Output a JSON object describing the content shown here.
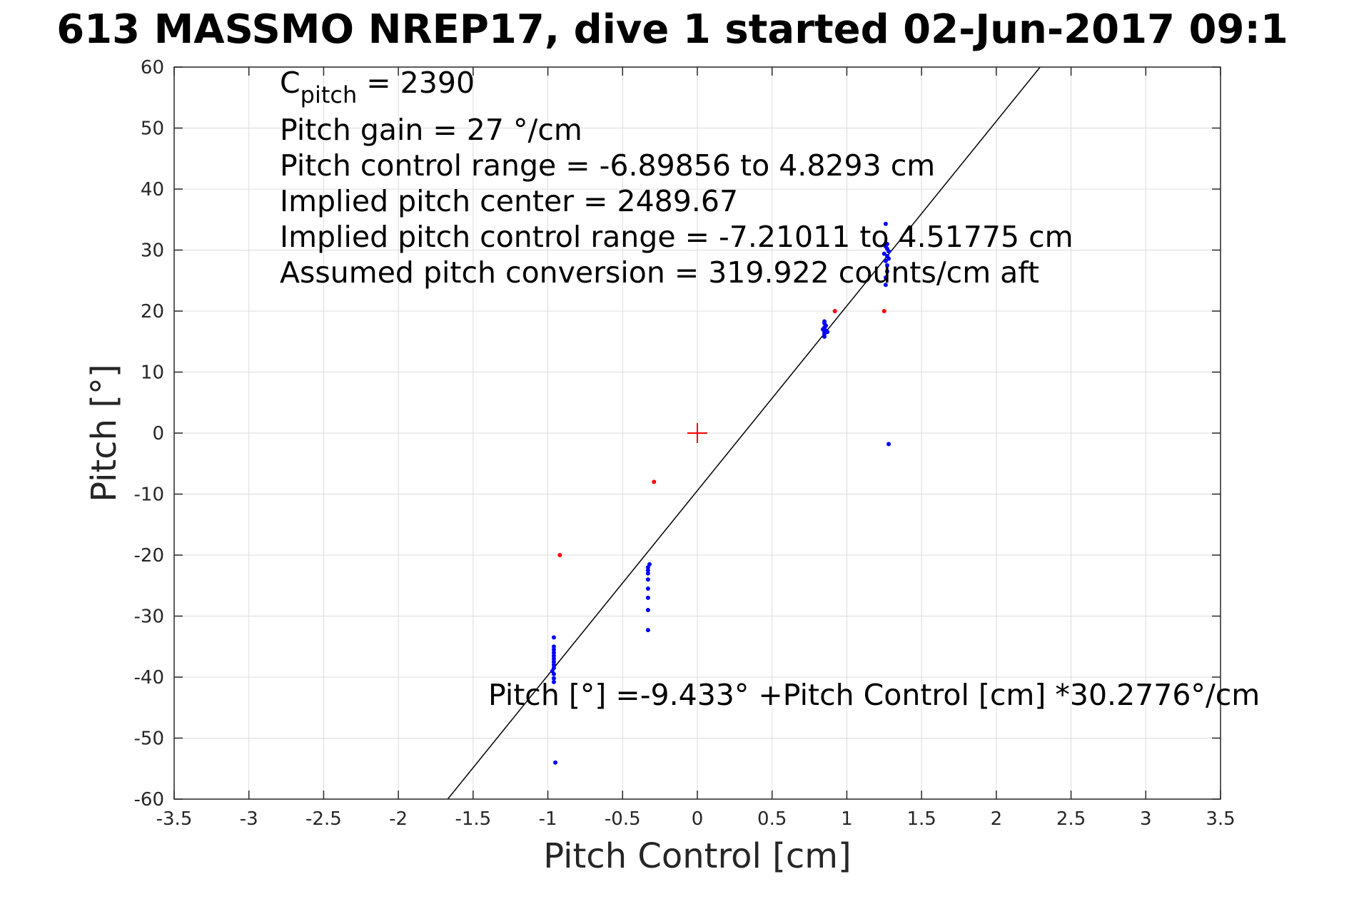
{
  "chart_data": {
    "type": "scatter",
    "title": "613 MASSMO NREP17, dive 1 started 02-Jun-2017 09:1",
    "xlabel": "Pitch Control [cm]",
    "ylabel": "Pitch [°]",
    "xlim": [
      -3.5,
      3.5
    ],
    "ylim": [
      -60,
      60
    ],
    "xticks": [
      -3.5,
      -3,
      -2.5,
      -2,
      -1.5,
      -1,
      -0.5,
      0,
      0.5,
      1,
      1.5,
      2,
      2.5,
      3,
      3.5
    ],
    "xtick_labels": [
      "-3.5",
      "-3",
      "-2.5",
      "-2",
      "-1.5",
      "-1",
      "-0.5",
      "0",
      "0.5",
      "1",
      "1.5",
      "2",
      "2.5",
      "3",
      "3.5"
    ],
    "yticks": [
      -60,
      -50,
      -40,
      -30,
      -20,
      -10,
      0,
      10,
      20,
      30,
      40,
      50,
      60
    ],
    "ytick_labels": [
      "-60",
      "-50",
      "-40",
      "-30",
      "-20",
      "-10",
      "0",
      "10",
      "20",
      "30",
      "40",
      "50",
      "60"
    ],
    "grid": true,
    "annotations": {
      "cpitch_base": "C",
      "cpitch_sub": "pitch",
      "cpitch_rest": " = 2390",
      "lines": [
        "Pitch gain = 27 °/cm",
        "Pitch control range = -6.89856 to 4.8293 cm",
        "Implied pitch center = 2489.67",
        "Implied pitch control range = -7.21011 to 4.51775 cm",
        "Assumed pitch conversion = 319.922 counts/cm aft"
      ],
      "fit_equation": "Pitch [°] =-9.433° +Pitch Control [cm] *30.2776°/cm"
    },
    "fit_line": {
      "intercept": -9.433,
      "slope": 30.2776,
      "color": "#000000"
    },
    "series": [
      {
        "color": "#0000ff",
        "points": [
          [
            -0.96,
            -33.5
          ],
          [
            -0.96,
            -35.0
          ],
          [
            -0.96,
            -35.5
          ],
          [
            -0.96,
            -36.0
          ],
          [
            -0.96,
            -36.5
          ],
          [
            -0.96,
            -37.0
          ],
          [
            -0.96,
            -37.5
          ],
          [
            -0.96,
            -38.0
          ],
          [
            -0.96,
            -38.5
          ],
          [
            -0.97,
            -39.0
          ],
          [
            -0.96,
            -39.5
          ],
          [
            -0.96,
            -40.2
          ],
          [
            -0.96,
            -40.8
          ],
          [
            -0.95,
            -54.0
          ],
          [
            -0.32,
            -21.5
          ],
          [
            -0.33,
            -22.0
          ],
          [
            -0.33,
            -22.5
          ],
          [
            -0.33,
            -23.0
          ],
          [
            -0.33,
            -24.0
          ],
          [
            -0.33,
            -25.5
          ],
          [
            -0.33,
            -27.0
          ],
          [
            -0.33,
            -29.0
          ],
          [
            -0.33,
            -32.3
          ],
          [
            0.85,
            15.8
          ],
          [
            0.85,
            16.2
          ],
          [
            0.85,
            16.5
          ],
          [
            0.86,
            16.8
          ],
          [
            0.84,
            17.0
          ],
          [
            0.85,
            17.3
          ],
          [
            0.86,
            17.6
          ],
          [
            0.85,
            18.0
          ],
          [
            0.85,
            18.3
          ],
          [
            0.87,
            16.6
          ],
          [
            1.26,
            24.3
          ],
          [
            1.26,
            25.5
          ],
          [
            1.27,
            26.5
          ],
          [
            1.27,
            27.5
          ],
          [
            1.26,
            28.2
          ],
          [
            1.28,
            28.6
          ],
          [
            1.27,
            29.0
          ],
          [
            1.25,
            29.4
          ],
          [
            1.28,
            29.8
          ],
          [
            1.27,
            30.2
          ],
          [
            1.26,
            30.6
          ],
          [
            1.27,
            31.0
          ],
          [
            1.26,
            34.3
          ],
          [
            1.28,
            -1.8
          ]
        ]
      },
      {
        "color": "#ff0000",
        "points": [
          [
            -0.92,
            -20.0
          ],
          [
            -0.29,
            -8.0
          ],
          [
            0.92,
            20.0
          ],
          [
            1.25,
            20.0
          ]
        ]
      }
    ],
    "center_marker": {
      "x": 0,
      "y": 0,
      "color": "#ff0000"
    }
  }
}
